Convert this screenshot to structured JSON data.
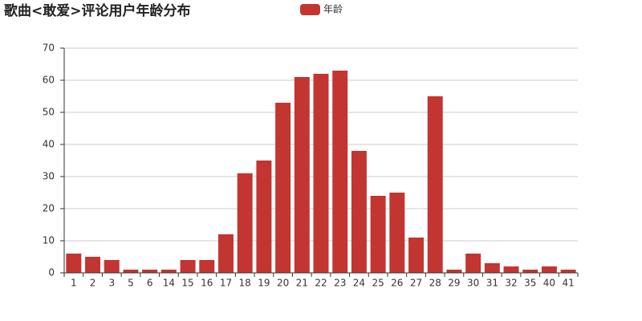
{
  "chart_data": {
    "type": "bar",
    "title": "歌曲<敢爱>评论用户年龄分布",
    "categories": [
      "1",
      "2",
      "3",
      "5",
      "6",
      "14",
      "15",
      "16",
      "17",
      "18",
      "19",
      "20",
      "21",
      "22",
      "23",
      "24",
      "25",
      "26",
      "27",
      "28",
      "29",
      "30",
      "31",
      "32",
      "35",
      "40",
      "41"
    ],
    "series": [
      {
        "name": "年龄",
        "color": "#c23531",
        "values": [
          6,
          5,
          4,
          1,
          1,
          1,
          4,
          4,
          12,
          31,
          35,
          53,
          61,
          62,
          63,
          38,
          24,
          25,
          11,
          55,
          1,
          6,
          3,
          2,
          1,
          2,
          1
        ]
      }
    ],
    "ylim": [
      0,
      70
    ],
    "yticks": [
      0,
      10,
      20,
      30,
      40,
      50,
      60,
      70
    ],
    "grid": true
  }
}
